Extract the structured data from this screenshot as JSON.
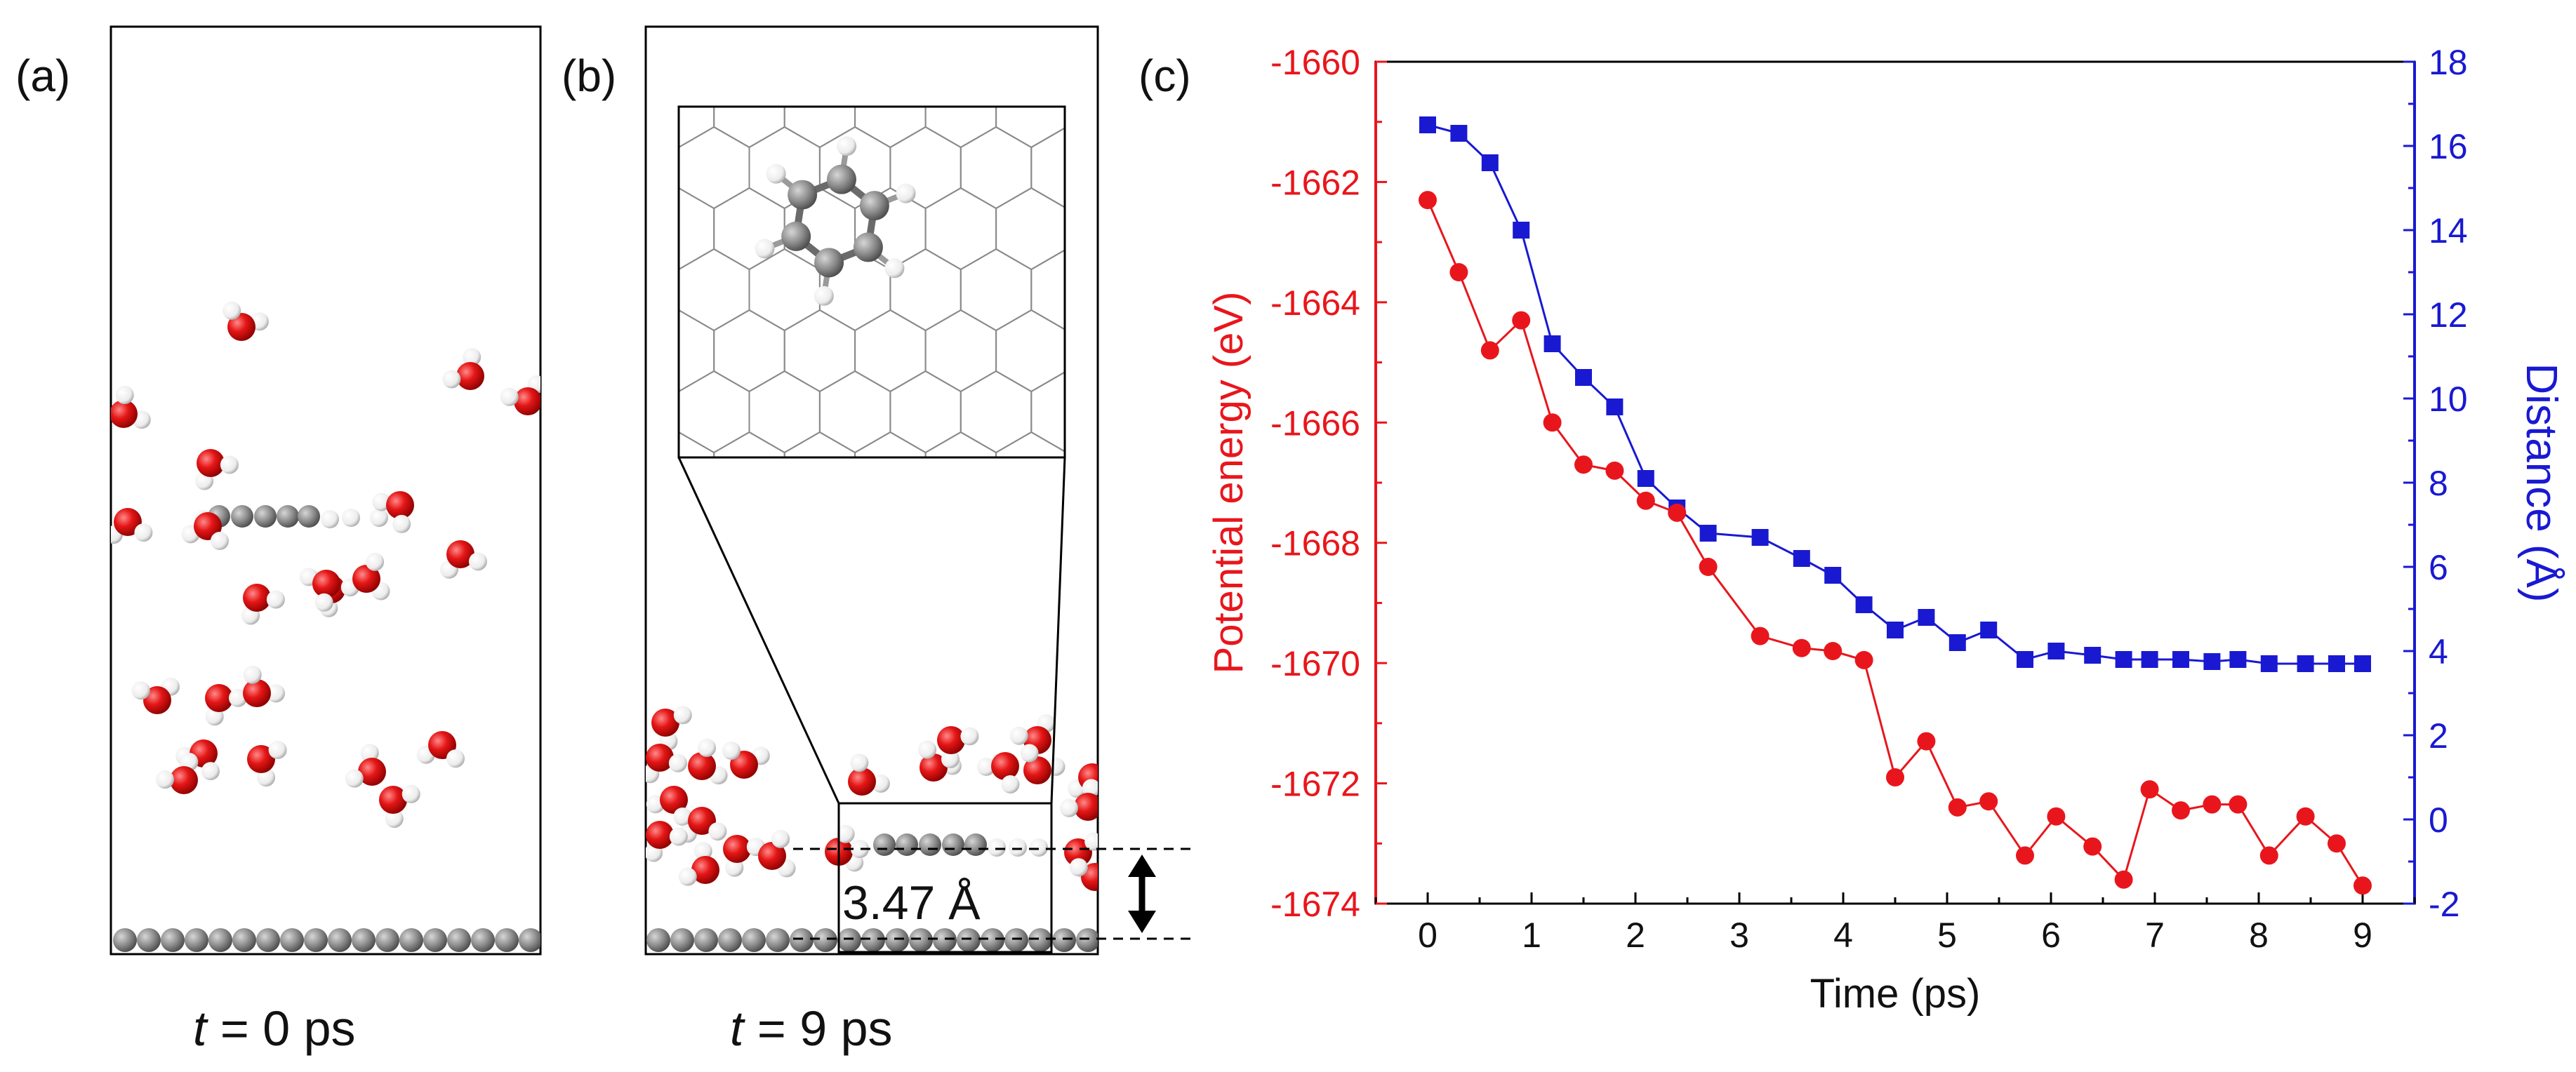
{
  "panels": {
    "a": {
      "label": "(a)",
      "caption_var": "t",
      "caption_rest": " = 0 ps"
    },
    "b": {
      "label": "(b)",
      "caption_var": "t",
      "caption_rest": " = 9 ps",
      "distance_label": "3.47 Å"
    },
    "c": {
      "label": "(c)"
    }
  },
  "colors": {
    "energy": "#e8161c",
    "distance": "#1919d2",
    "oxygen": "#e51616",
    "hydrogen": "#f5f5f5",
    "carbon": "#8a8a8a"
  },
  "chart_data": {
    "type": "line",
    "title": "",
    "xlabel": "Time (ps)",
    "xlim": [
      -0.5,
      9.5
    ],
    "xticks": [
      0,
      1,
      2,
      3,
      4,
      5,
      6,
      7,
      8,
      9
    ],
    "x": [
      0,
      0.3,
      0.6,
      0.9,
      1.2,
      1.5,
      1.8,
      2.1,
      2.4,
      2.7,
      3.2,
      3.6,
      3.9,
      4.2,
      4.5,
      4.8,
      5.1,
      5.4,
      5.75,
      6.05,
      6.4,
      6.7,
      6.95,
      7.25,
      7.55,
      7.8,
      8.1,
      8.45,
      8.75,
      9.0
    ],
    "series": [
      {
        "name": "Potential energy",
        "axis": "left",
        "marker": "circle",
        "ylabel": "Potential energy (eV)",
        "ylim": [
          -1674,
          -1660
        ],
        "yticks": [
          -1674,
          -1672,
          -1670,
          -1668,
          -1666,
          -1664,
          -1662,
          -1660
        ],
        "values": [
          -1662.3,
          -1663.5,
          -1664.8,
          -1664.3,
          -1666.0,
          -1666.7,
          -1666.8,
          -1667.3,
          -1667.5,
          -1668.4,
          -1669.55,
          -1669.75,
          -1669.8,
          -1669.95,
          -1671.9,
          -1671.3,
          -1672.4,
          -1672.3,
          -1673.2,
          -1672.55,
          -1673.05,
          -1673.6,
          -1672.1,
          -1672.45,
          -1672.35,
          -1672.35,
          -1673.2,
          -1672.55,
          -1673.0,
          -1673.7
        ]
      },
      {
        "name": "Distance",
        "axis": "right",
        "marker": "square",
        "ylabel": "Distance (Å)",
        "ylim": [
          -2,
          18
        ],
        "yticks": [
          -2,
          0,
          2,
          4,
          6,
          8,
          10,
          12,
          14,
          16,
          18
        ],
        "values": [
          16.5,
          16.3,
          15.6,
          14.0,
          11.3,
          10.5,
          9.8,
          8.1,
          7.4,
          6.8,
          6.7,
          6.2,
          5.8,
          5.1,
          4.5,
          4.8,
          4.2,
          4.5,
          3.8,
          4.0,
          3.9,
          3.8,
          3.8,
          3.8,
          3.75,
          3.8,
          3.7,
          3.7,
          3.7,
          3.7
        ]
      }
    ]
  }
}
